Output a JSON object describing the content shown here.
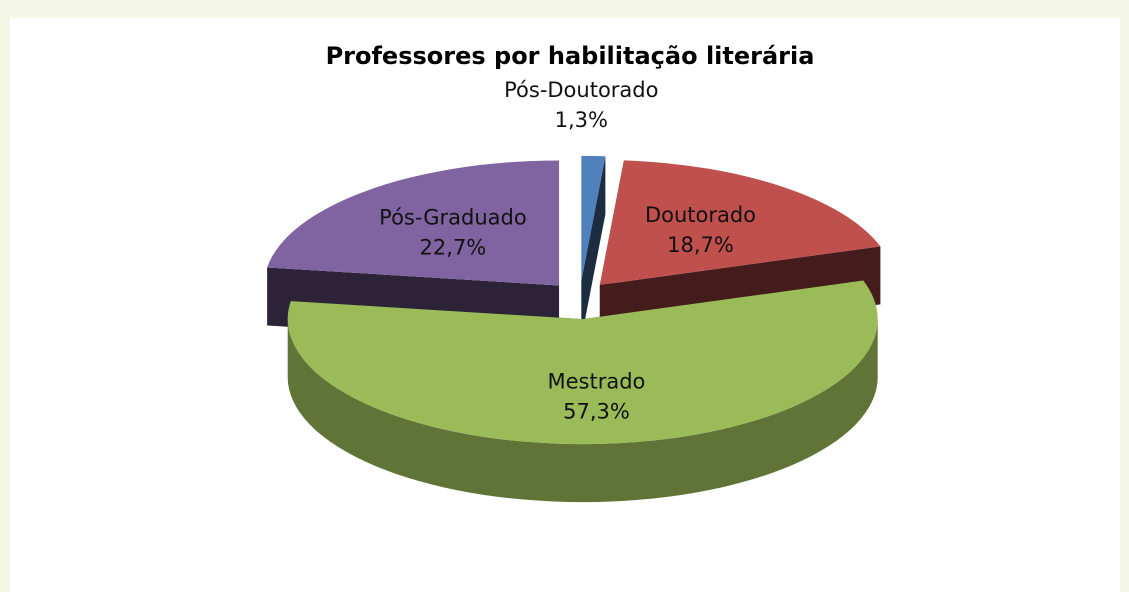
{
  "chart_data": {
    "type": "pie3d",
    "title": "Professores por habilitação literária",
    "categories": [
      "Pós-Doutorado",
      "Doutorado",
      "Mestrado",
      "Pós-Graduado"
    ],
    "values": [
      1.3,
      18.7,
      57.3,
      22.7
    ],
    "value_labels": [
      "1,3%",
      "18,7%",
      "57,3%",
      "22,7%"
    ],
    "colors": [
      "#4f81bd",
      "#c0504d",
      "#9bbb59",
      "#8064a2"
    ]
  }
}
